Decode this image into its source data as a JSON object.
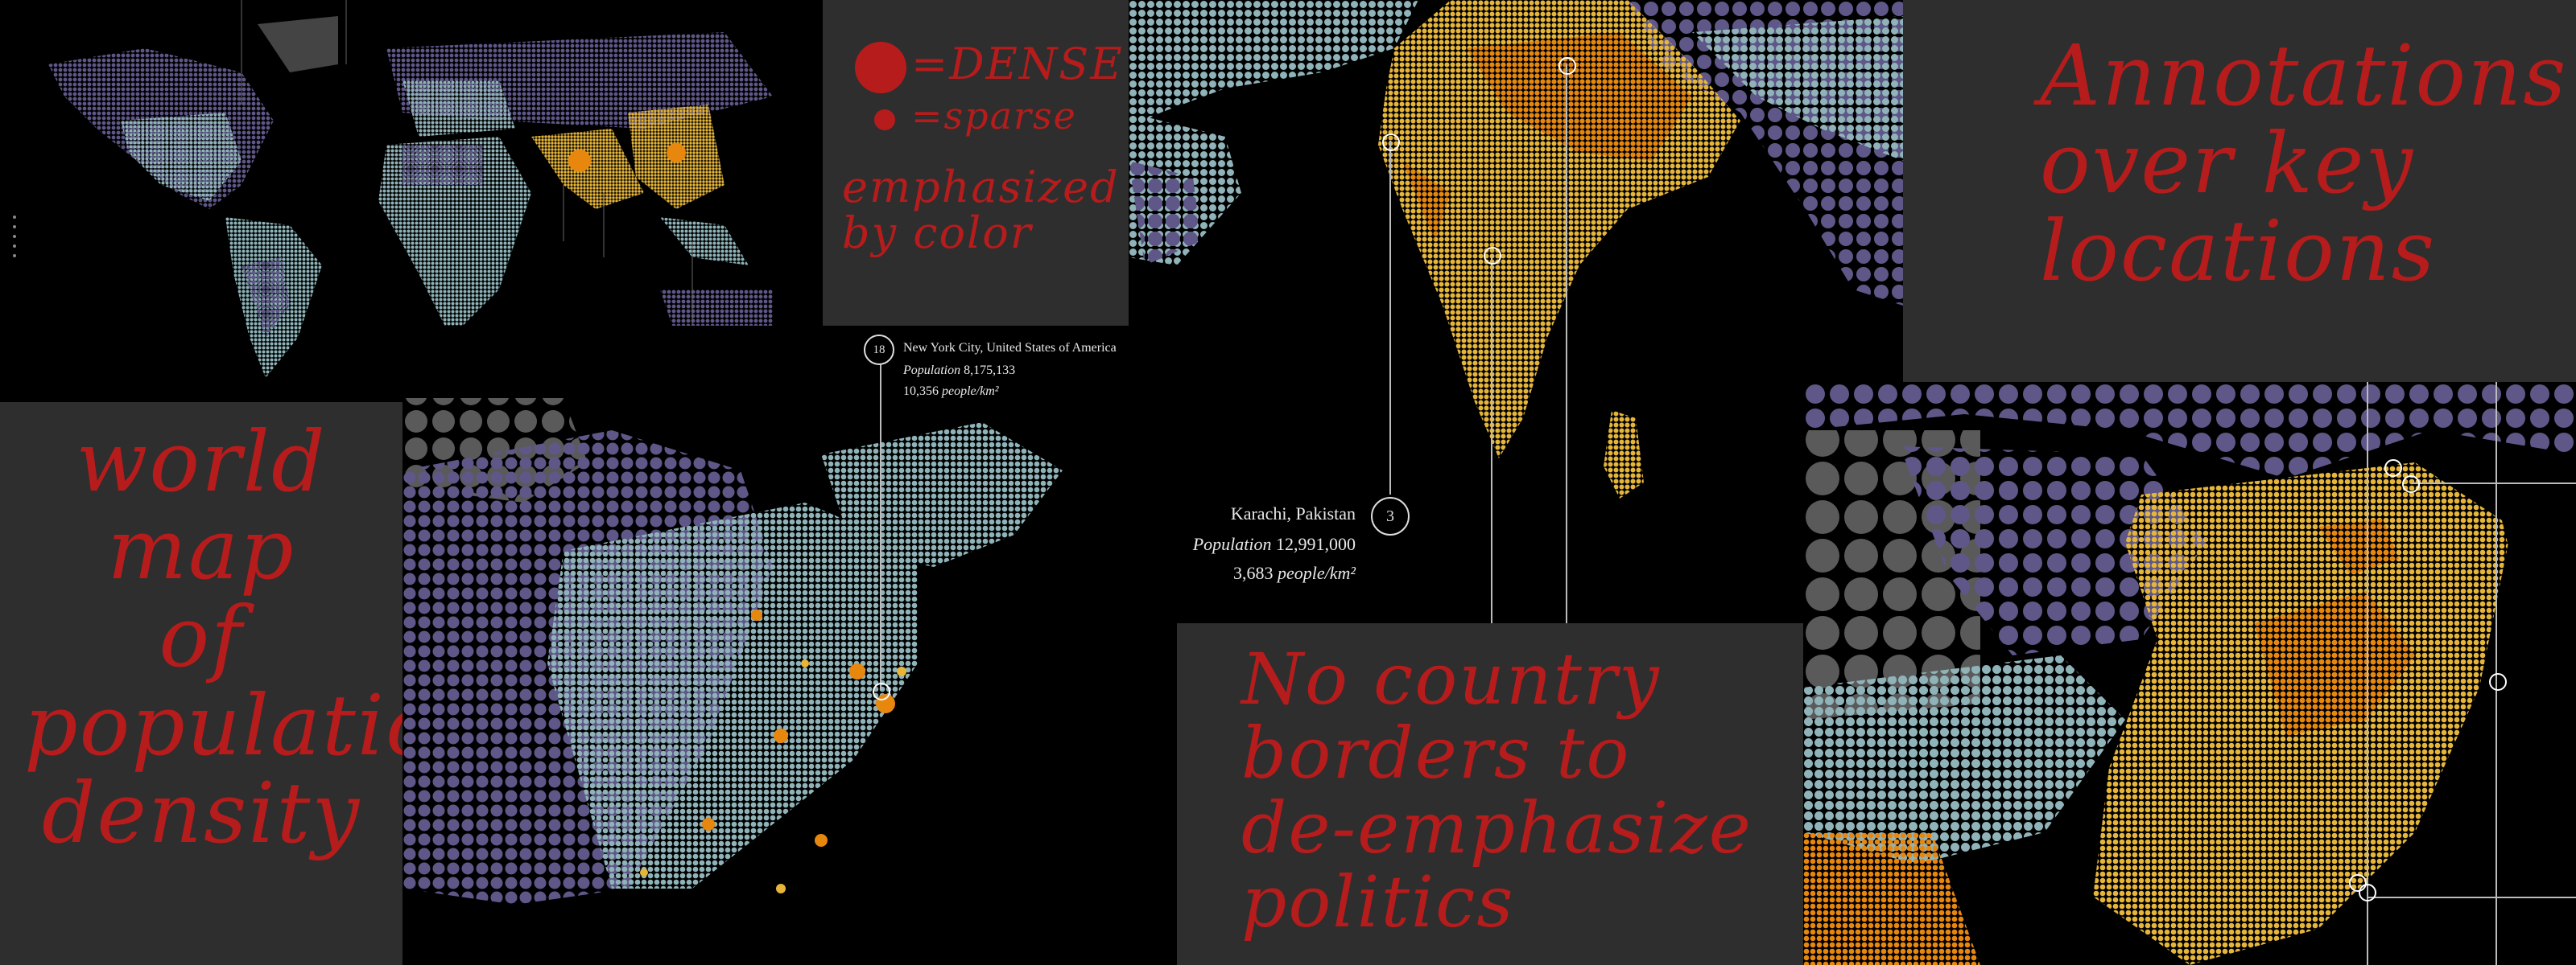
{
  "colors": {
    "annotation_red": "#b71c1c",
    "panel_gray": "#2e2e2e",
    "dense_orange": "#e8870e",
    "mid_yellow": "#e6b63b",
    "light_blue": "#8fb3b8",
    "purple": "#5e5788",
    "sparse_gray": "#5a5a5a"
  },
  "notes": {
    "dense": "=DENSE",
    "sparse": "=sparse",
    "emphasized": "emphasized\nby color",
    "annotations": "Annotations\nover key\nlocations",
    "world": "world\nmap\nof\npopulation\ndensity",
    "borders": "No country\nborders to\nde-emphasize\npolitics"
  },
  "callouts": {
    "nyc": {
      "number": "18",
      "name": "New York City, United States of America",
      "population_label": "Population",
      "population_value": "8,175,133",
      "density": "10,356",
      "density_unit": "people/km²"
    },
    "karachi": {
      "number": "3",
      "name": "Karachi, Pakistan",
      "population_label": "Population",
      "population_value": "12,991,000",
      "density": "3,683",
      "density_unit": "people/km²"
    }
  }
}
